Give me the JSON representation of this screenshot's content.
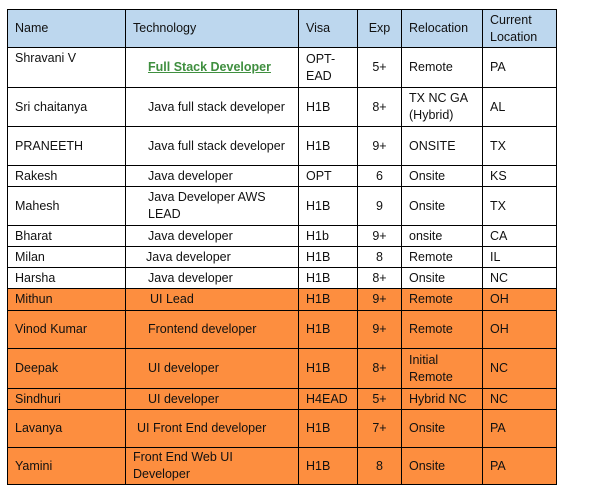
{
  "table": {
    "headers": {
      "name": "Name",
      "technology": "Technology",
      "visa": "Visa",
      "exp": "Exp",
      "relocation": "Relocation",
      "location": "Current Location"
    },
    "rows": [
      {
        "name": "Shravani V",
        "tech": "Full Stack Developer",
        "visa": "OPT-EAD",
        "exp": "5+",
        "relocation": "Remote",
        "location": "PA",
        "highlight": false
      },
      {
        "name": "Sri chaitanya",
        "tech": "Java full stack developer",
        "visa": "H1B",
        "exp": "8+",
        "relocation": "TX NC GA (Hybrid)",
        "location": "AL",
        "highlight": false
      },
      {
        "name": "PRANEETH",
        "tech": "Java full stack developer",
        "visa": "H1B",
        "exp": "9+",
        "relocation": "ONSITE",
        "location": "TX",
        "highlight": false
      },
      {
        "name": "Rakesh",
        "tech": "Java developer",
        "visa": "OPT",
        "exp": "6",
        "relocation": "Onsite",
        "location": "KS",
        "highlight": false
      },
      {
        "name": "Mahesh",
        "tech": "Java Developer AWS LEAD",
        "visa": "H1B",
        "exp": "9",
        "relocation": "Onsite",
        "location": "TX",
        "highlight": false
      },
      {
        "name": "Bharat",
        "tech": "Java developer",
        "visa": "H1b",
        "exp": "9+",
        "relocation": "onsite",
        "location": "CA",
        "highlight": false
      },
      {
        "name": "Milan",
        "tech": "Java developer",
        "visa": "H1B",
        "exp": "8",
        "relocation": "Remote",
        "location": "IL",
        "highlight": false
      },
      {
        "name": "Harsha",
        "tech": "Java developer",
        "visa": "H1B",
        "exp": "8+",
        "relocation": "Onsite",
        "location": "NC",
        "highlight": false
      },
      {
        "name": "Mithun",
        "tech": "UI Lead",
        "visa": "H1B",
        "exp": "9+",
        "relocation": "Remote",
        "location": "OH",
        "highlight": true
      },
      {
        "name": "Vinod Kumar",
        "tech": "Frontend developer",
        "visa": "H1B",
        "exp": "9+",
        "relocation": "Remote",
        "location": "OH",
        "highlight": true
      },
      {
        "name": "Deepak",
        "tech": "UI developer",
        "visa": "H1B",
        "exp": "8+",
        "relocation": "Initial Remote",
        "location": "NC",
        "highlight": true
      },
      {
        "name": "Sindhuri",
        "tech": "UI developer",
        "visa": "H4EAD",
        "exp": "5+",
        "relocation": "Hybrid NC",
        "location": "NC",
        "highlight": true
      },
      {
        "name": "Lavanya",
        "tech": "UI Front End developer",
        "visa": "H1B",
        "exp": "7+",
        "relocation": "Onsite",
        "location": "PA",
        "highlight": true
      },
      {
        "name": "Yamini",
        "tech": "Front End Web UI Developer",
        "visa": "H1B",
        "exp": "8",
        "relocation": "Onsite",
        "location": "PA",
        "highlight": true
      }
    ]
  }
}
